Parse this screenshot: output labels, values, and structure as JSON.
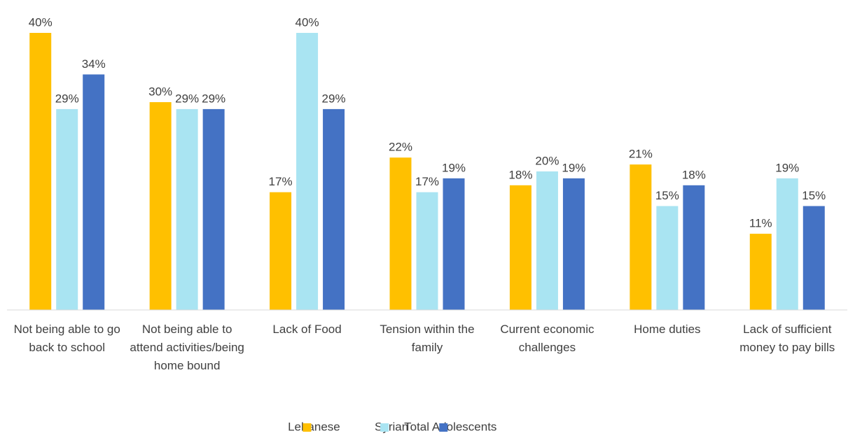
{
  "chart_data": {
    "type": "bar",
    "categories": [
      "Not being able to go back to school",
      "Not being able to attend activities/being home bound",
      "Lack of Food",
      "Tension within the family",
      "Current economic challenges",
      "Home duties",
      "Lack of sufficient money to pay bills"
    ],
    "series": [
      {
        "name": "Lebanese",
        "color": "#FFC000",
        "values": [
          40,
          30,
          17,
          22,
          18,
          21,
          11
        ],
        "value_labels": [
          "40%",
          "30%",
          "17%",
          "22%",
          "18%",
          "21%",
          "11%"
        ]
      },
      {
        "name": "Syrian",
        "color": "#A9E4F2",
        "values": [
          29,
          29,
          40,
          17,
          20,
          15,
          19
        ],
        "value_labels": [
          "29%",
          "29%",
          "40%",
          "17%",
          "20%",
          "15%",
          "19%"
        ]
      },
      {
        "name": "Total Adolescents",
        "color": "#4472C4",
        "values": [
          34,
          29,
          29,
          19,
          19,
          18,
          15
        ],
        "value_labels": [
          "34%",
          "29%",
          "29%",
          "19%",
          "19%",
          "18%",
          "15%"
        ]
      }
    ],
    "ylim": [
      0,
      40
    ],
    "legend": "bottom"
  }
}
